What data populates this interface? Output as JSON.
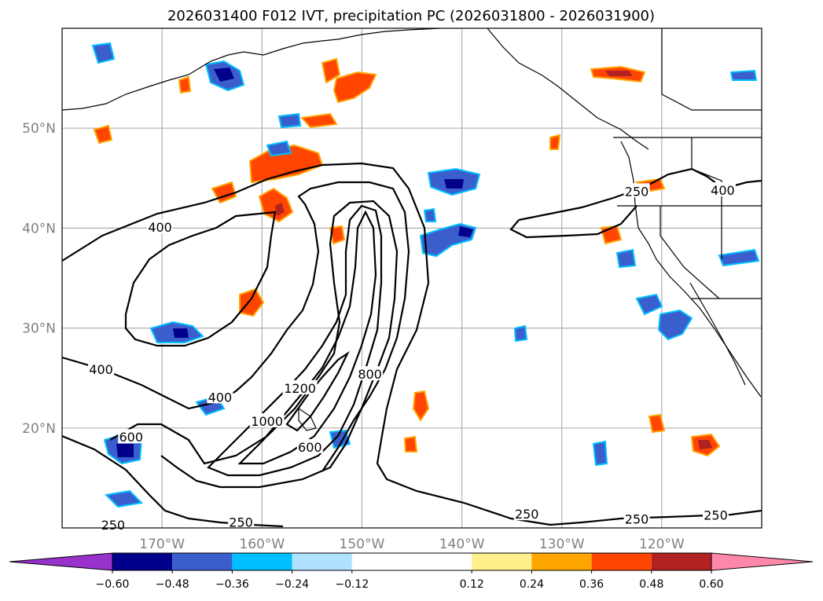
{
  "chart_data": {
    "type": "contour-map",
    "title": "2026031400 F012 IVT, precipitation PC (2026031800 - 2026031900)",
    "map": {
      "lon_range": [
        -180,
        -110
      ],
      "lat_range": [
        10,
        60
      ],
      "gridlines": true,
      "lon_ticks": [
        {
          "value": -170,
          "label": "170°W"
        },
        {
          "value": -160,
          "label": "160°W"
        },
        {
          "value": -150,
          "label": "150°W"
        },
        {
          "value": -140,
          "label": "140°W"
        },
        {
          "value": -130,
          "label": "130°W"
        },
        {
          "value": -120,
          "label": "120°W"
        }
      ],
      "lat_ticks": [
        {
          "value": 20,
          "label": "20°N"
        },
        {
          "value": 30,
          "label": "30°N"
        },
        {
          "value": 40,
          "label": "40°N"
        },
        {
          "value": 50,
          "label": "50°N"
        }
      ]
    },
    "ivt_contour_levels": [
      250,
      400,
      600,
      800,
      1000,
      1200
    ],
    "contour_labels": [
      {
        "text": "400",
        "lon": -170.2,
        "lat": 40.1
      },
      {
        "text": "400",
        "lon": -176.1,
        "lat": 25.9
      },
      {
        "text": "400",
        "lon": -164.2,
        "lat": 23.1
      },
      {
        "text": "600",
        "lon": -173.1,
        "lat": 19.1
      },
      {
        "text": "250",
        "lon": -174.9,
        "lat": 10.3
      },
      {
        "text": "250",
        "lon": -162.1,
        "lat": 10.6
      },
      {
        "text": "1000",
        "lon": -159.5,
        "lat": 20.7
      },
      {
        "text": "1200",
        "lon": -156.2,
        "lat": 24.0
      },
      {
        "text": "800",
        "lon": -149.2,
        "lat": 25.4
      },
      {
        "text": "600",
        "lon": -155.2,
        "lat": 18.1
      },
      {
        "text": "250",
        "lon": -122.5,
        "lat": 43.7
      },
      {
        "text": "400",
        "lon": -113.9,
        "lat": 43.8
      },
      {
        "text": "250",
        "lon": -133.5,
        "lat": 11.4
      },
      {
        "text": "250",
        "lon": -122.5,
        "lat": 10.9
      },
      {
        "text": "250",
        "lon": -114.6,
        "lat": 11.3
      }
    ],
    "colorbar": {
      "extend": "both",
      "bounds": [
        -0.72,
        -0.6,
        -0.48,
        -0.36,
        -0.24,
        -0.12,
        0.12,
        0.24,
        0.36,
        0.48,
        0.6,
        0.72
      ],
      "colors": [
        "#9932cc",
        "#00008b",
        "#3a5fcd",
        "#00bfff",
        "#b0e2ff",
        "#ffffff",
        "#fff08c",
        "#ffa500",
        "#ff4500",
        "#b22222",
        "#ff88aa"
      ],
      "tick_values": [
        -0.6,
        -0.48,
        -0.36,
        -0.24,
        -0.12,
        0.12,
        0.24,
        0.36,
        0.48,
        0.6
      ],
      "tick_labels": [
        "−0.60",
        "−0.48",
        "−0.36",
        "−0.24",
        "−0.12",
        "0.12",
        "0.24",
        "0.36",
        "0.48",
        "0.60"
      ]
    }
  }
}
